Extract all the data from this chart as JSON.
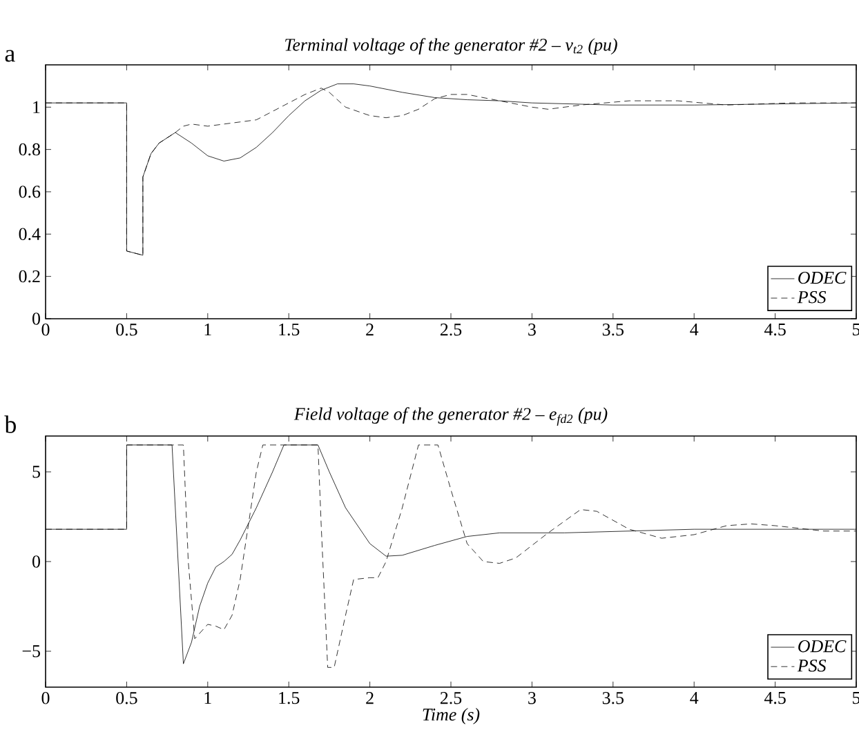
{
  "chart_data": [
    {
      "type": "line",
      "title": "Terminal voltage of the generator #2 – v$_{t2}$  (pu)",
      "annotations": [
        "a"
      ],
      "xlim": [
        0,
        5
      ],
      "ylim": [
        0,
        1.2
      ],
      "xticks": [
        0,
        0.5,
        1,
        1.5,
        2,
        2.5,
        3,
        3.5,
        4,
        4.5,
        5
      ],
      "yticks": [
        0,
        0.2,
        0.4,
        0.6,
        0.8,
        1
      ],
      "legend": "bottom right",
      "grid": false,
      "marker": "none",
      "series": [
        {
          "name": "ODEC",
          "color": "#000000",
          "line_style": "solid",
          "x": [
            0,
            0.5,
            0.5,
            0.6,
            0.6,
            0.65,
            0.7,
            0.8,
            0.9,
            1.0,
            1.1,
            1.2,
            1.3,
            1.4,
            1.5,
            1.6,
            1.7,
            1.8,
            1.9,
            2.0,
            2.2,
            2.4,
            2.6,
            2.8,
            3.0,
            3.5,
            4.0,
            4.5,
            5
          ],
          "values": [
            1.02,
            1.02,
            0.32,
            0.3,
            0.67,
            0.78,
            0.83,
            0.88,
            0.83,
            0.77,
            0.745,
            0.76,
            0.81,
            0.88,
            0.96,
            1.03,
            1.08,
            1.11,
            1.11,
            1.1,
            1.07,
            1.045,
            1.035,
            1.03,
            1.02,
            1.01,
            1.01,
            1.015,
            1.02
          ]
        },
        {
          "name": "PSS",
          "color": "#000000",
          "line_style": "dashed",
          "x": [
            0,
            0.5,
            0.5,
            0.6,
            0.6,
            0.65,
            0.7,
            0.8,
            0.85,
            0.9,
            1.0,
            1.2,
            1.3,
            1.4,
            1.5,
            1.6,
            1.7,
            1.75,
            1.85,
            2.0,
            2.1,
            2.2,
            2.3,
            2.4,
            2.5,
            2.6,
            2.8,
            3.0,
            3.1,
            3.3,
            3.6,
            3.9,
            4.2,
            4.6,
            5
          ],
          "values": [
            1.02,
            1.02,
            0.32,
            0.3,
            0.67,
            0.78,
            0.83,
            0.88,
            0.91,
            0.92,
            0.91,
            0.93,
            0.94,
            0.98,
            1.02,
            1.06,
            1.09,
            1.07,
            1.0,
            0.96,
            0.95,
            0.96,
            0.99,
            1.04,
            1.06,
            1.06,
            1.03,
            1.0,
            0.99,
            1.01,
            1.03,
            1.03,
            1.01,
            1.02,
            1.02
          ]
        }
      ]
    },
    {
      "type": "line",
      "title": "Field voltage of the generator #2 – e$_{fd2}$  (pu)",
      "xlabel": "Time  (s)",
      "annotations": [
        "b"
      ],
      "xlim": [
        0,
        5
      ],
      "ylim": [
        -7,
        7
      ],
      "xticks": [
        0,
        0.5,
        1,
        1.5,
        2,
        2.5,
        3,
        3.5,
        4,
        4.5,
        5
      ],
      "yticks": [
        {
          "value": -5,
          "label": "−5"
        },
        0,
        5
      ],
      "legend": "bottom right",
      "grid": false,
      "marker": "none",
      "series": [
        {
          "name": "ODEC",
          "color": "#000000",
          "line_style": "solid",
          "x": [
            0,
            0.5,
            0.5,
            0.78,
            0.8,
            0.85,
            0.9,
            0.95,
            1.0,
            1.05,
            1.1,
            1.15,
            1.2,
            1.3,
            1.4,
            1.47,
            1.68,
            1.75,
            1.85,
            2.0,
            2.1,
            2.2,
            2.4,
            2.6,
            2.8,
            3.2,
            3.6,
            4.0,
            5
          ],
          "values": [
            1.8,
            1.8,
            6.5,
            6.5,
            3,
            -5.7,
            -4.5,
            -2.5,
            -1.2,
            -0.3,
            0,
            0.4,
            1.2,
            3,
            5,
            6.5,
            6.5,
            5,
            3,
            1,
            0.3,
            0.35,
            0.9,
            1.4,
            1.6,
            1.6,
            1.7,
            1.8,
            1.8
          ]
        },
        {
          "name": "PSS",
          "color": "#000000",
          "line_style": "dashed",
          "x": [
            0,
            0.5,
            0.5,
            0.85,
            0.88,
            0.92,
            1.0,
            1.05,
            1.1,
            1.15,
            1.2,
            1.25,
            1.3,
            1.34,
            1.68,
            1.7,
            1.74,
            1.78,
            1.85,
            1.9,
            2.0,
            2.05,
            2.1,
            2.2,
            2.3,
            2.42,
            2.5,
            2.6,
            2.7,
            2.8,
            2.9,
            3.1,
            3.3,
            3.4,
            3.6,
            3.8,
            4.0,
            4.2,
            4.35,
            4.5,
            4.8,
            5
          ],
          "values": [
            1.8,
            1.8,
            6.5,
            6.5,
            0,
            -4.3,
            -3.5,
            -3.6,
            -3.8,
            -3,
            -1,
            2,
            5,
            6.5,
            6.5,
            2,
            -5.9,
            -5.9,
            -3,
            -1,
            -0.9,
            -0.9,
            0,
            3,
            6.5,
            6.5,
            4,
            1,
            0,
            -0.1,
            0.2,
            1.6,
            2.9,
            2.8,
            1.8,
            1.3,
            1.5,
            2.0,
            2.1,
            2.0,
            1.7,
            1.7
          ]
        }
      ]
    }
  ]
}
